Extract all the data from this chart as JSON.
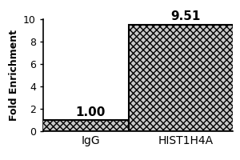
{
  "categories": [
    "IgG",
    "HIST1H4A"
  ],
  "values": [
    1.0,
    9.51
  ],
  "bar_color": "#c8c8c8",
  "bar_edgecolor": "#000000",
  "bar_linewidth": 1.5,
  "bar_width": 0.6,
  "bar_positions": [
    0.25,
    0.75
  ],
  "value_labels": [
    "1.00",
    "9.51"
  ],
  "value_fontsize": 11,
  "value_fontweight": "bold",
  "ylabel": "Fold Enrichment",
  "ylabel_fontsize": 9,
  "ylabel_fontweight": "bold",
  "xlabel_fontsize": 10,
  "tick_fontsize": 9,
  "ylim": [
    0,
    10
  ],
  "yticks": [
    0,
    2,
    4,
    6,
    8,
    10
  ],
  "background_color": "#ffffff",
  "hatch_pattern": "xxxx",
  "figsize": [
    3.0,
    2.0
  ],
  "dpi": 100
}
